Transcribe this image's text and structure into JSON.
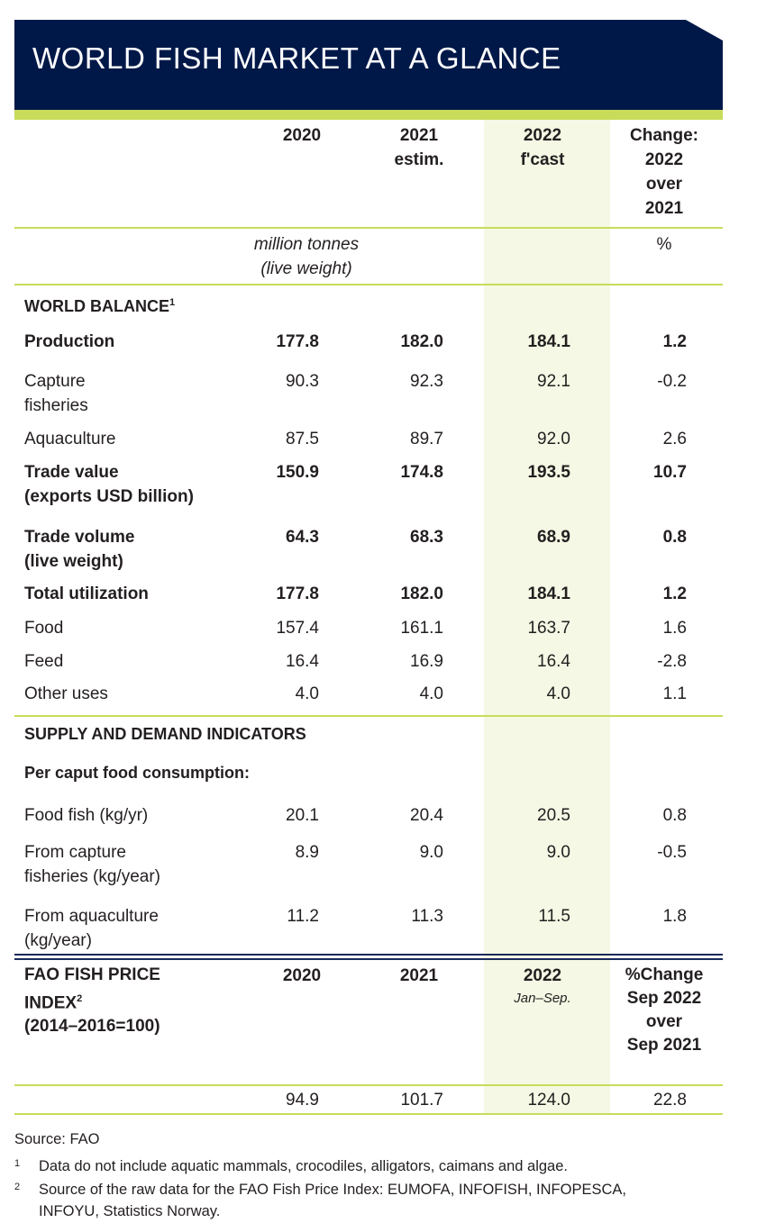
{
  "title": "WORLD FISH MARKET AT A GLANCE",
  "header": {
    "col2020": "2020",
    "col2021": [
      "2021",
      "estim."
    ],
    "col2022": [
      "2022",
      "f'cast"
    ],
    "change": [
      "Change:",
      "2022",
      "over",
      "2021"
    ]
  },
  "units": {
    "tonnes": [
      "million tonnes",
      "(live weight)"
    ],
    "percent": "%"
  },
  "sections": {
    "world_balance": "WORLD BALANCE",
    "world_balance_note": "1",
    "supply_demand": "SUPPLY AND DEMAND INDICATORS",
    "per_caput": "Per caput food consumption:"
  },
  "rows": [
    {
      "label": [
        "Production"
      ],
      "bold": true,
      "v": [
        "177.8",
        "182.0",
        "184.1",
        "1.2"
      ]
    },
    {
      "label": [
        "Capture",
        "fisheries"
      ],
      "bold": false,
      "v": [
        "90.3",
        "92.3",
        "92.1",
        "-0.2"
      ]
    },
    {
      "label": [
        "Aquaculture"
      ],
      "bold": false,
      "v": [
        "87.5",
        "89.7",
        "92.0",
        "2.6"
      ]
    },
    {
      "label": [
        "Trade value",
        "(exports USD billion)"
      ],
      "bold": true,
      "v": [
        "150.9",
        "174.8",
        "193.5",
        "10.7"
      ]
    },
    {
      "label": [
        "Trade volume",
        "(live weight)"
      ],
      "bold": true,
      "v": [
        "64.3",
        "68.3",
        "68.9",
        "0.8"
      ]
    },
    {
      "label": [
        "Total utilization"
      ],
      "bold": true,
      "v": [
        "177.8",
        "182.0",
        "184.1",
        "1.2"
      ]
    },
    {
      "label": [
        "Food"
      ],
      "bold": false,
      "v": [
        "157.4",
        "161.1",
        "163.7",
        "1.6"
      ]
    },
    {
      "label": [
        "Feed"
      ],
      "bold": false,
      "v": [
        "16.4",
        "16.9",
        "16.4",
        "-2.8"
      ]
    },
    {
      "label": [
        "Other uses"
      ],
      "bold": false,
      "v": [
        "4.0",
        "4.0",
        "4.0",
        "1.1"
      ]
    },
    {
      "label": [
        "Food fish (kg/yr)"
      ],
      "bold": false,
      "v": [
        "20.1",
        "20.4",
        "20.5",
        "0.8"
      ]
    },
    {
      "label": [
        "From capture",
        "fisheries (kg/year)"
      ],
      "bold": false,
      "v": [
        "8.9",
        "9.0",
        "9.0",
        "-0.5"
      ]
    },
    {
      "label": [
        "From aquaculture",
        "(kg/year)"
      ],
      "bold": false,
      "v": [
        "11.2",
        "11.3",
        "11.5",
        "1.8"
      ]
    }
  ],
  "price_index": {
    "label": [
      "FAO FISH PRICE",
      "INDEX",
      "(2014–2016=100)"
    ],
    "note": "2",
    "col2020": "2020",
    "col2021": "2021",
    "col2022": "2022",
    "col2022_sub": "Jan–Sep.",
    "change": [
      "%Change",
      "Sep 2022",
      "over",
      "Sep 2021"
    ],
    "values": [
      "94.9",
      "101.7",
      "124.0",
      "22.8"
    ]
  },
  "footer": {
    "source": "Source: FAO",
    "notes": [
      {
        "mark": "1",
        "text": "Data do not include aquatic mammals, crocodiles, alligators, caimans and algae."
      },
      {
        "mark": "2",
        "text": "Source of the raw data for the FAO Fish Price Index: EUMOFA, INFOFISH, INFOPESCA,",
        "text2": "INFOYU, Statistics Norway."
      }
    ]
  },
  "colors": {
    "navy": "#001848",
    "lime": "#c8dc5a",
    "shade": "#f4f8e4"
  }
}
